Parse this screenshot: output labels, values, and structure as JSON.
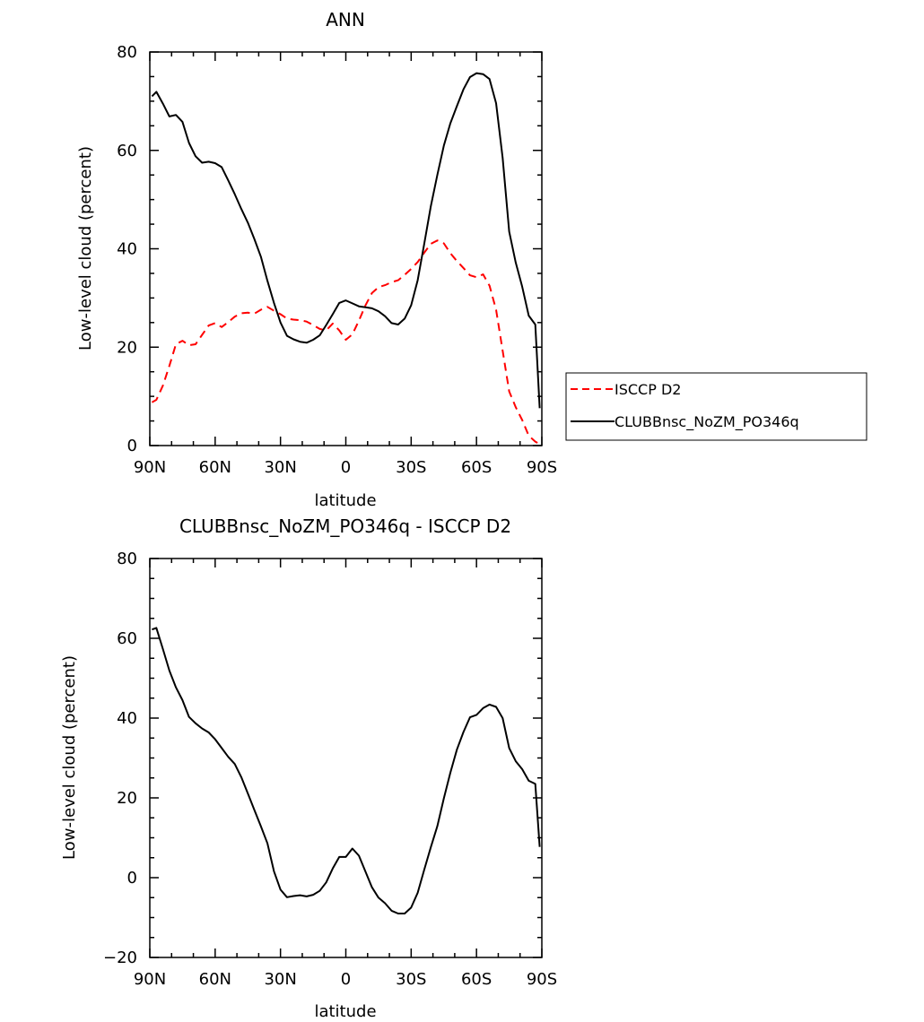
{
  "chart_data": [
    {
      "type": "line",
      "title": "ANN",
      "xlabel": "latitude",
      "ylabel": "Low-level cloud (percent)",
      "xlim": [
        90,
        -90
      ],
      "ylim": [
        0,
        80
      ],
      "x_ticks": [
        90,
        60,
        30,
        0,
        -30,
        -60,
        -90
      ],
      "x_tick_labels": [
        "90N",
        "60N",
        "30N",
        "0",
        "30S",
        "60S",
        "90S"
      ],
      "y_ticks": [
        0,
        20,
        40,
        60,
        80
      ],
      "y_tick_labels": [
        "0",
        "20",
        "40",
        "60",
        "80"
      ],
      "legend_position": "right",
      "series": [
        {
          "name": "ISCCP D2",
          "color": "#ff0000",
          "style": "dashed",
          "x": [
            89,
            87,
            84,
            81,
            78,
            75,
            72,
            69,
            66,
            63,
            60,
            57,
            54,
            51,
            48,
            45,
            42,
            39,
            36,
            33,
            30,
            27,
            24,
            21,
            18,
            15,
            12,
            9,
            6,
            3,
            0,
            -3,
            -6,
            -9,
            -12,
            -15,
            -18,
            -21,
            -24,
            -27,
            -30,
            -33,
            -36,
            -39,
            -42,
            -45,
            -48,
            -51,
            -54,
            -57,
            -60,
            -63,
            -66,
            -69,
            -72,
            -75,
            -78,
            -81,
            -84,
            -87,
            -89
          ],
          "values": [
            8.8,
            9.3,
            12.2,
            16.2,
            20.6,
            21.3,
            20.4,
            20.6,
            22.5,
            24.4,
            24.9,
            24.1,
            25.1,
            26.2,
            26.9,
            27.0,
            26.8,
            27.6,
            28.2,
            27.4,
            26.7,
            25.8,
            25.6,
            25.5,
            25.2,
            24.5,
            23.7,
            23.4,
            24.8,
            23.4,
            21.5,
            22.6,
            25.4,
            28.5,
            31.0,
            32.2,
            32.6,
            33.2,
            33.6,
            34.7,
            35.9,
            37.3,
            39.2,
            41.0,
            41.7,
            41.1,
            39.1,
            37.5,
            36.1,
            34.6,
            34.2,
            34.8,
            32.5,
            27.6,
            19.3,
            11.0,
            7.8,
            5.2,
            2.0,
            0.8,
            0.3
          ]
        },
        {
          "name": "CLUBBnsc_NoZM_PO346q",
          "color": "#000000",
          "style": "solid",
          "x": [
            89,
            87,
            84,
            81,
            78,
            75,
            72,
            69,
            66,
            63,
            60,
            57,
            54,
            51,
            48,
            45,
            42,
            39,
            36,
            33,
            30,
            27,
            24,
            21,
            18,
            15,
            12,
            9,
            6,
            3,
            0,
            -3,
            -6,
            -9,
            -12,
            -15,
            -18,
            -21,
            -24,
            -27,
            -30,
            -33,
            -36,
            -39,
            -42,
            -45,
            -48,
            -51,
            -54,
            -57,
            -60,
            -63,
            -66,
            -69,
            -72,
            -75,
            -78,
            -81,
            -84,
            -87,
            -89
          ],
          "values": [
            71.0,
            71.9,
            69.5,
            66.9,
            67.2,
            65.8,
            61.5,
            58.8,
            57.5,
            57.7,
            57.4,
            56.6,
            53.9,
            51.1,
            48.1,
            45.3,
            42.0,
            38.4,
            33.5,
            29.0,
            25.0,
            22.3,
            21.6,
            21.1,
            20.9,
            21.5,
            22.4,
            24.5,
            26.7,
            29.0,
            29.5,
            28.9,
            28.3,
            28.1,
            27.9,
            27.3,
            26.3,
            24.9,
            24.6,
            25.8,
            28.5,
            33.6,
            41.0,
            48.6,
            55.0,
            61.0,
            65.5,
            69.0,
            72.4,
            74.9,
            75.7,
            75.5,
            74.5,
            69.6,
            58.5,
            43.5,
            37.2,
            32.3,
            26.4,
            24.6,
            7.6
          ]
        }
      ]
    },
    {
      "type": "line",
      "title": "CLUBBnsc_NoZM_PO346q - ISCCP D2",
      "xlabel": "latitude",
      "ylabel": "Low-level cloud (percent)",
      "xlim": [
        90,
        -90
      ],
      "ylim": [
        -20,
        80
      ],
      "x_ticks": [
        90,
        60,
        30,
        0,
        -30,
        -60,
        -90
      ],
      "x_tick_labels": [
        "90N",
        "60N",
        "30N",
        "0",
        "30S",
        "60S",
        "90S"
      ],
      "y_ticks": [
        -20,
        0,
        20,
        40,
        60,
        80
      ],
      "y_tick_labels": [
        "−20",
        "0",
        "20",
        "40",
        "60",
        "80"
      ],
      "series": [
        {
          "color": "#000000",
          "style": "solid",
          "x": [
            89,
            87,
            84,
            81,
            78,
            75,
            72,
            69,
            66,
            63,
            60,
            57,
            54,
            51,
            48,
            45,
            42,
            39,
            36,
            33,
            30,
            27,
            24,
            21,
            18,
            15,
            12,
            9,
            6,
            3,
            0,
            -3,
            -6,
            -9,
            -12,
            -15,
            -18,
            -21,
            -24,
            -27,
            -30,
            -33,
            -36,
            -39,
            -42,
            -45,
            -48,
            -51,
            -54,
            -57,
            -60,
            -63,
            -66,
            -69,
            -72,
            -75,
            -78,
            -81,
            -84,
            -87,
            -89
          ],
          "values": [
            62.2,
            62.6,
            57.3,
            51.9,
            47.7,
            44.5,
            40.3,
            38.7,
            37.4,
            36.4,
            34.7,
            32.5,
            30.3,
            28.5,
            25.2,
            21.1,
            17.0,
            12.9,
            8.6,
            1.6,
            -3.0,
            -4.9,
            -4.6,
            -4.4,
            -4.7,
            -4.3,
            -3.3,
            -1.2,
            2.3,
            5.2,
            5.2,
            7.3,
            5.5,
            1.5,
            -2.4,
            -5.0,
            -6.4,
            -8.3,
            -9.0,
            -9.0,
            -7.5,
            -3.8,
            2.0,
            7.6,
            12.9,
            19.9,
            26.3,
            32.1,
            36.5,
            40.2,
            40.8,
            42.5,
            43.4,
            42.8,
            40.0,
            32.5,
            29.2,
            27.2,
            24.3,
            23.5,
            7.7
          ]
        }
      ]
    }
  ]
}
